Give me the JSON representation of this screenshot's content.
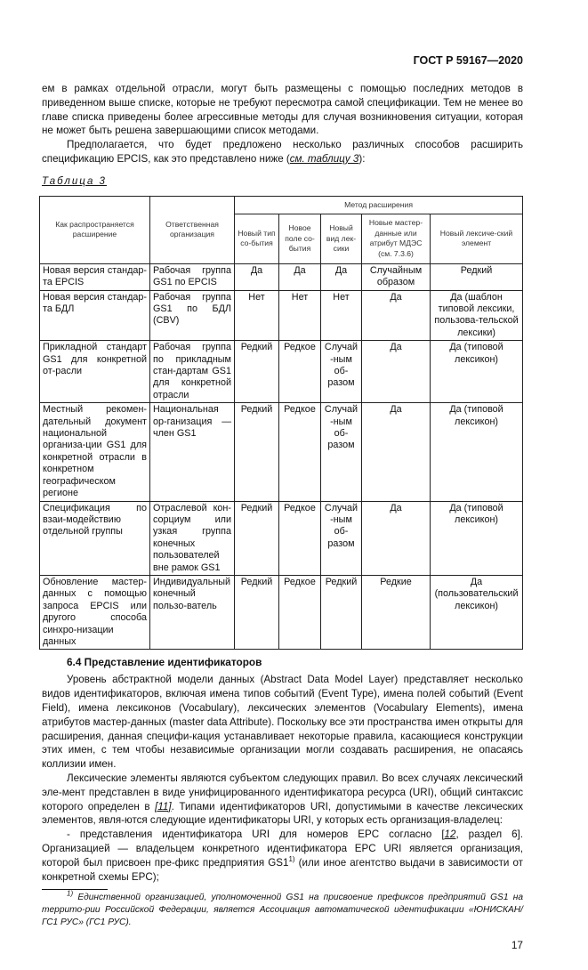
{
  "header": {
    "doc_id": "ГОСТ Р 59167—2020"
  },
  "intro": {
    "p1": "ем в рамках отдельной отрасли, могут быть размещены с помощью последних методов в приведенном выше списке, которые не требуют пересмотра самой спецификации. Тем не менее во главе списка приведены более агрессивные методы для случая возникновения ситуации, которая не может быть решена завершающими список методами.",
    "p2_before": "Предполагается, что будет предложено несколько различных способов расширить спецификацию EPCIS, как это представлено ниже (",
    "p2_link": "см. таблицу 3",
    "p2_after": "):"
  },
  "table": {
    "caption": "Таблица 3",
    "headers": {
      "col1": "Как распространяется расширение",
      "col2": "Ответственная организация",
      "group": "Метод расширения",
      "sub": [
        "Новый тип со-бытия",
        "Новое поле со-бытия",
        "Новый вид лек-сики",
        "Новые мастер-данные или атрибут МДЭС (см. 7.3.6)",
        "Новый лексиче-ский элемент"
      ]
    },
    "rows": [
      {
        "how": "Новая версия стандар-та EPCIS",
        "org": "Рабочая группа GS1 по EPCIS",
        "c1": "Да",
        "c2": "Да",
        "c3": "Да",
        "c4": "Случайным образом",
        "c5": "Редкий"
      },
      {
        "how": "Новая версия стандар-та БДЛ",
        "org": "Рабочая группа GS1 по БДЛ (CBV)",
        "c1": "Нет",
        "c2": "Нет",
        "c3": "Нет",
        "c4": "Да",
        "c5": "Да (шаблон типовой лексики, пользова-тельской лексики)"
      },
      {
        "how": "Прикладной стандарт GS1 для конкретной от-расли",
        "org": "Рабочая группа по прикладным стан-дартам GS1 для конкретной отрасли",
        "c1": "Редкий",
        "c2": "Редкое",
        "c3": "Случай-ным об-разом",
        "c4": "Да",
        "c5": "Да (типовой лексикон)"
      },
      {
        "how": "Местный рекомен-дательный документ национальной организа-ции GS1 для конкретной отрасли в конкретном географическом регионе",
        "org": "Национальная ор-ганизация — член GS1",
        "c1": "Редкий",
        "c2": "Редкое",
        "c3": "Случай-ным об-разом",
        "c4": "Да",
        "c5": "Да (типовой лексикон)"
      },
      {
        "how": "Спецификация по взаи-модействию отдельной группы",
        "org": "Отраслевой кон-сорциум или узкая группа конечных пользователей вне рамок GS1",
        "c1": "Редкий",
        "c2": "Редкое",
        "c3": "Случай-ным об-разом",
        "c4": "Да",
        "c5": "Да (типовой лексикон)"
      },
      {
        "how": "Обновление мастер-данных с помощью запроса EPCIS или другого способа синхро-низации данных",
        "org": "Индивидуальный конечный пользо-ватель",
        "c1": "Редкий",
        "c2": "Редкое",
        "c3": "Редкий",
        "c4": "Редкие",
        "c5": "Да (пользовательский лексикон)"
      }
    ]
  },
  "section": {
    "heading": "6.4 Представление идентификаторов",
    "p1": "Уровень абстрактной модели данных (Abstract Data Model Layer) представляет несколько видов идентификаторов, включая имена типов событий (Event Type), имена полей событий (Event Field), имена лексиконов (Vocabulary), лексических элементов (Vocabulary Elements), имена атрибутов мастер-данных (master data Attribute). Поскольку все эти пространства имен открыты для расширения, данная специфи-кация устанавливает некоторые правила, касающиеся конструкции этих имен, с тем чтобы независимые организации могли создавать расширения, не опасаясь коллизии имен.",
    "p2_before": "Лексические элементы являются субъектом следующих правил. Во всех случаях лексический эле-мент представлен в виде унифицированного идентификатора ресурса (URI), общий синтаксис которого определен в ",
    "p2_ref": "[11]",
    "p2_after": ". Типами идентификаторов URI, допустимыми в качестве лексических элементов, явля-ются следующие идентификаторы URI, у которых есть организация-владелец:",
    "p3_before": "- представления идентификатора URI для номеров EPC согласно [",
    "p3_ref": "12",
    "p3_mid": ", раздел 6]. Организацией — владельцем конкретного идентификатора EPC URI является организация, которой был присвоен пре-фикс предприятия GS1",
    "p3_sup": "1)",
    "p3_after": " (или иное агентство выдачи в зависимости от конкретной схемы EPC);"
  },
  "footnote": {
    "mark": "1)",
    "text": " Единственной организацией, уполномоченной GS1 на присвоение префиксов предприятий GS1 на террито-рии Российской Федерации, является Ассоциация автоматической идентификации «ЮНИСКАН/ГС1 РУС» (ГС1 РУС)."
  },
  "page_number": "17"
}
